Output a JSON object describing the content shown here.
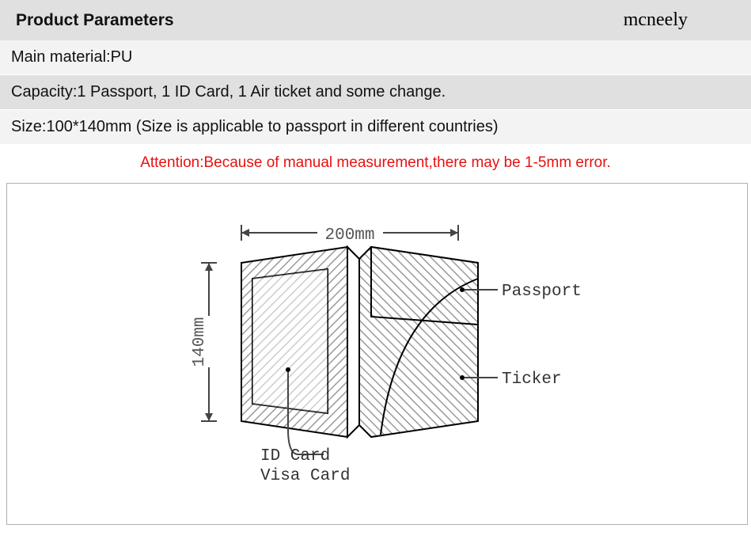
{
  "header": {
    "title": "Product Parameters",
    "brand": "mcneely"
  },
  "rows": {
    "material": "Main material:PU",
    "capacity": "Capacity:1 Passport, 1 ID Card, 1 Air ticket and some change.",
    "size": "Size:100*140mm (Size is applicable to passport in different countries)"
  },
  "attention": {
    "text": "Attention:Because of manual measurement,there may be 1-5mm error.",
    "color": "#e81010"
  },
  "diagram": {
    "width_label": "200mm",
    "height_label": "140mm",
    "callouts": {
      "passport": "Passport",
      "ticker": "Ticker",
      "id_card_line1": "ID Card",
      "id_card_line2": "Visa Card"
    },
    "colors": {
      "outline": "#000000",
      "text": "#444444",
      "fill": "#888888",
      "background": "#ffffff"
    },
    "stroke_width": 2,
    "font_size_labels": 21,
    "font_family_labels": "Courier New, monospace",
    "dimensions": {
      "open_width_mm": 200,
      "height_mm": 140
    }
  }
}
